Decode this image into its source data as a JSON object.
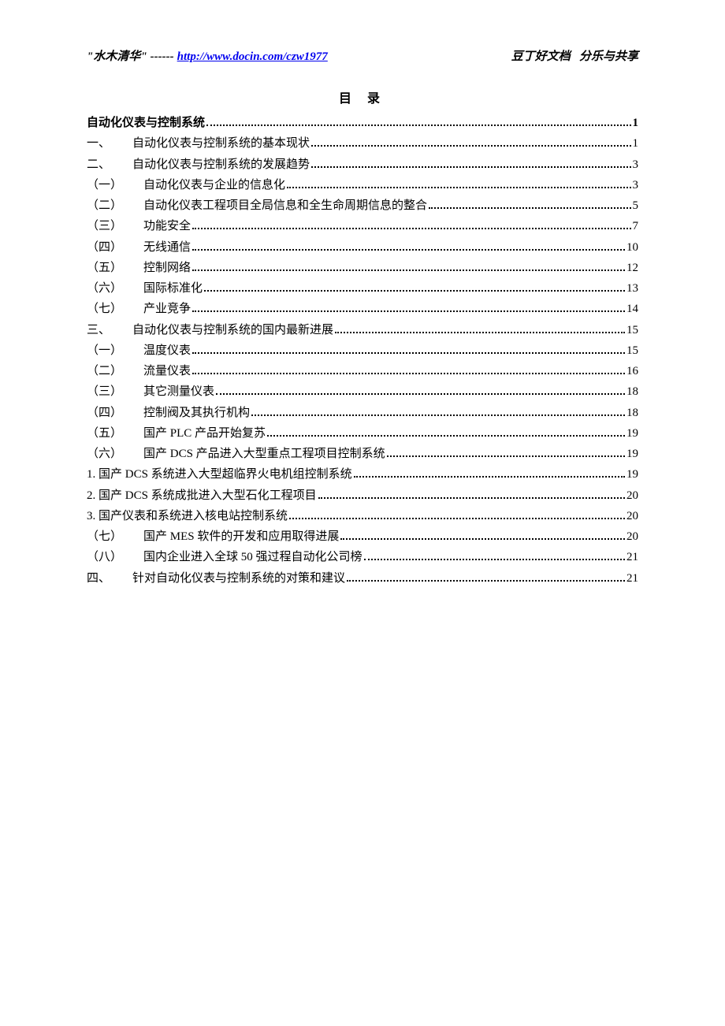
{
  "header": {
    "title_quote_open": "\"",
    "title": "水木清华",
    "title_quote_close": "\"",
    "dashes": " ------ ",
    "link": "http://www.docin.com/czw1977",
    "right1": "豆丁好文档",
    "right2": "分乐与共享"
  },
  "toc_title": "目 录",
  "entries": [
    {
      "prefix": "",
      "label": "自动化仪表与控制系统",
      "page": "1",
      "bold": true,
      "indent": 0
    },
    {
      "prefix": "一、",
      "label": "自动化仪表与控制系统的基本现状",
      "page": "1",
      "bold": false,
      "indent": 1
    },
    {
      "prefix": "二、",
      "label": "自动化仪表与控制系统的发展趋势",
      "page": "3",
      "bold": false,
      "indent": 1
    },
    {
      "prefix": "（一）",
      "label": "自动化仪表与企业的信息化",
      "page": "3",
      "bold": false,
      "indent": 2
    },
    {
      "prefix": "（二）",
      "label": "自动化仪表工程项目全局信息和全生命周期信息的整合",
      "page": "5",
      "bold": false,
      "indent": 2
    },
    {
      "prefix": "（三）",
      "label": "功能安全",
      "page": "7",
      "bold": false,
      "indent": 2
    },
    {
      "prefix": "（四）",
      "label": "无线通信",
      "page": "10",
      "bold": false,
      "indent": 2
    },
    {
      "prefix": "（五）",
      "label": "控制网络",
      "page": "12",
      "bold": false,
      "indent": 2
    },
    {
      "prefix": "（六）",
      "label": "国际标准化",
      "page": "13",
      "bold": false,
      "indent": 2
    },
    {
      "prefix": "（七）",
      "label": "产业竞争",
      "page": "14",
      "bold": false,
      "indent": 2
    },
    {
      "prefix": "三、",
      "label": "自动化仪表与控制系统的国内最新进展",
      "page": "15",
      "bold": false,
      "indent": 1
    },
    {
      "prefix": "（一）",
      "label": "温度仪表",
      "page": "15",
      "bold": false,
      "indent": 2
    },
    {
      "prefix": "（二）",
      "label": "流量仪表",
      "page": "16",
      "bold": false,
      "indent": 2
    },
    {
      "prefix": "（三）",
      "label": "其它测量仪表",
      "page": "18",
      "bold": false,
      "indent": 2
    },
    {
      "prefix": "（四）",
      "label": "控制阀及其执行机构",
      "page": "18",
      "bold": false,
      "indent": 2
    },
    {
      "prefix": "（五）",
      "label": "国产 PLC 产品开始复苏",
      "page": "19",
      "bold": false,
      "indent": 2
    },
    {
      "prefix": "（六）",
      "label": "国产 DCS 产品进入大型重点工程项目控制系统",
      "page": "19",
      "bold": false,
      "indent": 2
    },
    {
      "prefix": "1. ",
      "label": "国产 DCS 系统进入大型超临界火电机组控制系统",
      "page": "19",
      "bold": false,
      "indent": 0,
      "noPrefixWidth": true
    },
    {
      "prefix": "2. ",
      "label": "国产 DCS 系统成批进入大型石化工程项目",
      "page": "20",
      "bold": false,
      "indent": 0,
      "noPrefixWidth": true
    },
    {
      "prefix": "3. ",
      "label": "国产仪表和系统进入核电站控制系统 ",
      "page": "20",
      "bold": false,
      "indent": 0,
      "noPrefixWidth": true
    },
    {
      "prefix": "（七）",
      "label": "国产 MES 软件的开发和应用取得进展 ",
      "page": "20",
      "bold": false,
      "indent": 2
    },
    {
      "prefix": "（八）",
      "label": "国内企业进入全球 50 强过程自动化公司榜",
      "page": "21",
      "bold": false,
      "indent": 2
    },
    {
      "prefix": "四、",
      "label": "针对自动化仪表与控制系统的对策和建议",
      "page": "21",
      "bold": false,
      "indent": 1
    }
  ]
}
